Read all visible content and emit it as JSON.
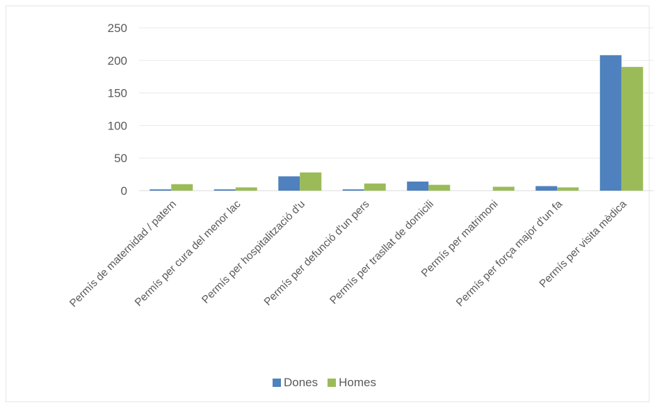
{
  "chart_data": {
    "type": "bar",
    "categories": [
      "Permís de maternidad / patern",
      "Permís per cura del menor lac",
      "Permís per hospitalització d'u",
      "Permís per defunció d'un pers",
      "Permís per trasllat de domicili",
      "Permís per matrimoni",
      "Permís per força major d'un fa",
      "Permís per visita mèdica"
    ],
    "series": [
      {
        "name": "Dones",
        "color": "#4e81bd",
        "values": [
          2,
          2,
          22,
          2,
          14,
          0,
          7,
          208
        ]
      },
      {
        "name": "Homes",
        "color": "#9bbb59",
        "values": [
          10,
          5,
          28,
          11,
          9,
          6,
          5,
          190
        ]
      }
    ],
    "y_ticks": [
      "0",
      "50",
      "100",
      "150",
      "200",
      "250"
    ],
    "ylim": [
      0,
      250
    ],
    "grid": true,
    "legend_position": "bottom",
    "title": "",
    "xlabel": "",
    "ylabel": ""
  }
}
